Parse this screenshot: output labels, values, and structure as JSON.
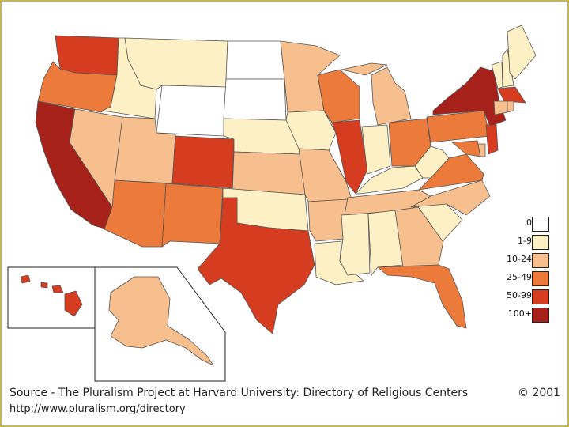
{
  "colors": {
    "c0": "#ffffff",
    "c1": "#fdf0c4",
    "c2": "#f6bf8d",
    "c3": "#ec7a3a",
    "c4": "#d63c20",
    "c5": "#a5211a",
    "border": "#555555"
  },
  "legend": [
    {
      "label": "0",
      "level": "c0"
    },
    {
      "label": "1-9",
      "level": "c1"
    },
    {
      "label": "10-24",
      "level": "c2"
    },
    {
      "label": "25-49",
      "level": "c3"
    },
    {
      "label": "50-99",
      "level": "c4"
    },
    {
      "label": "100+",
      "level": "c5"
    }
  ],
  "states": {
    "WA": "c4",
    "OR": "c3",
    "CA": "c5",
    "ID": "c1",
    "NV": "c2",
    "MT": "c1",
    "WY": "c0",
    "UT": "c2",
    "AZ": "c3",
    "CO": "c4",
    "NM": "c3",
    "ND": "c0",
    "SD": "c0",
    "NE": "c1",
    "KS": "c2",
    "OK": "c1",
    "TX": "c4",
    "MN": "c2",
    "IA": "c1",
    "MO": "c2",
    "AR": "c2",
    "LA": "c1",
    "WI": "c3",
    "IL": "c4",
    "MI": "c2",
    "IN": "c1",
    "OH": "c3",
    "KY": "c1",
    "TN": "c2",
    "MS": "c1",
    "AL": "c1",
    "GA": "c2",
    "FL": "c3",
    "SC": "c1",
    "NC": "c2",
    "VA": "c3",
    "WV": "c1",
    "PA": "c3",
    "NY": "c5",
    "VT": "c1",
    "NH": "c1",
    "ME": "c1",
    "MA": "c4",
    "CT": "c2",
    "RI": "c2",
    "NJ": "c4",
    "DE": "c2",
    "MD": "c3",
    "AK": "c2",
    "HI": "c4"
  },
  "source_text": "Source - The Pluralism Project at Harvard University: Directory of Religious Centers",
  "copyright": "© 2001",
  "url": "http://www.pluralism.org/directory"
}
